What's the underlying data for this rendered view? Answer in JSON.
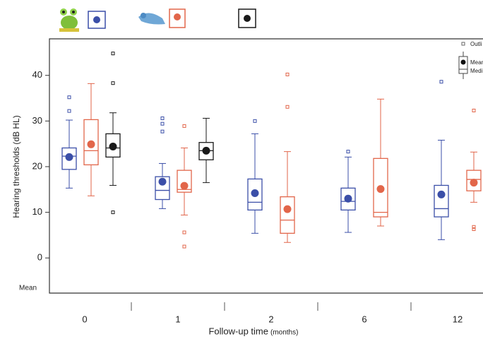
{
  "chart_data": {
    "type": "box",
    "y_label": "Hearing thresholds (dB HL)",
    "x_label": "Follow-up time",
    "x_label_unit": "(months)",
    "annotation": "Mean",
    "inset_legend": [
      "Outli",
      "Mean",
      "Medi"
    ],
    "categories": [
      "0",
      "1",
      "2",
      "6",
      "12"
    ],
    "ylim": [
      -7.7,
      48
    ],
    "yticks": [
      0,
      10,
      20,
      30,
      40
    ],
    "series": [
      {
        "color": "#3b4fa8",
        "min": [
          15.3,
          10.8,
          5.4,
          5.6,
          4
        ],
        "q1": [
          19.4,
          12.8,
          10.5,
          10.5,
          9
        ],
        "median": [
          22.3,
          14.8,
          12.2,
          12.4,
          10.8
        ],
        "q3": [
          24.1,
          17.8,
          17.3,
          15.3,
          15.9
        ],
        "max": [
          30.2,
          20.7,
          27.2,
          22.1,
          25.8
        ],
        "mean": [
          22.1,
          16.7,
          14.2,
          13,
          13.9
        ],
        "outliers": [
          [
            32.2,
            35.2
          ],
          [
            27.7,
            29.4,
            30.6
          ],
          [
            30
          ],
          [
            23.3
          ],
          [
            38.6
          ]
        ]
      },
      {
        "color": "#e2664a",
        "min": [
          13.6,
          9.4,
          3.4,
          7,
          12.2
        ],
        "q1": [
          20.4,
          14.4,
          5.4,
          9,
          14.7
        ],
        "median": [
          23.5,
          15,
          8.3,
          10,
          17.2
        ],
        "q3": [
          30.3,
          19.2,
          13.4,
          21.8,
          19.2
        ],
        "max": [
          38.2,
          24.1,
          23.3,
          34.8,
          23.2
        ],
        "mean": [
          24.9,
          15.8,
          10.7,
          15.1,
          16.5
        ],
        "outliers": [
          [],
          [
            2.5,
            5.6,
            28.9
          ],
          [
            33.1,
            40.2
          ],
          [],
          [
            6.3,
            6.8,
            32.3
          ]
        ]
      },
      {
        "color": "#1a1a1a",
        "min": [
          15.9,
          16.5,
          null,
          null,
          null
        ],
        "q1": [
          22.1,
          21.5,
          null,
          null,
          null
        ],
        "median": [
          24.1,
          23.5,
          null,
          null,
          null
        ],
        "q3": [
          27.2,
          25.3,
          null,
          null,
          null
        ],
        "max": [
          31.8,
          30.6,
          null,
          null,
          null
        ],
        "mean": [
          24.4,
          23.5,
          null,
          null,
          null
        ],
        "outliers": [
          [
            10,
            38.3,
            44.8
          ],
          [],
          [],
          [],
          []
        ]
      }
    ]
  }
}
